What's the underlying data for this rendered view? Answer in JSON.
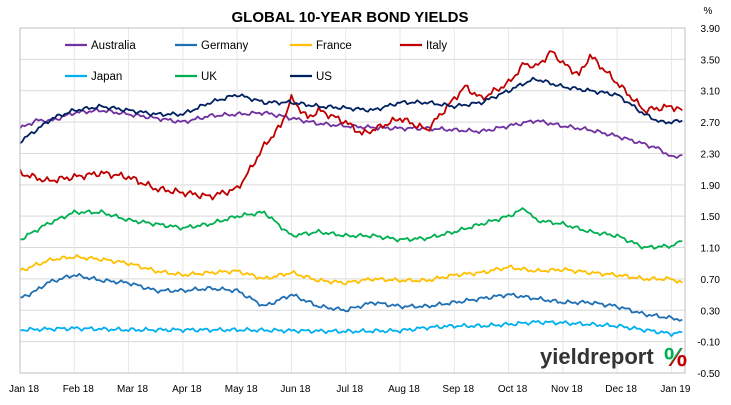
{
  "chart_data": {
    "type": "line",
    "title": "GLOBAL 10-YEAR BOND YIELDS",
    "y_unit": "%",
    "ylim": [
      -0.5,
      3.9
    ],
    "y_ticks": [
      "3.90",
      "3.50",
      "3.10",
      "2.70",
      "2.30",
      "1.90",
      "1.50",
      "1.10",
      "0.70",
      "0.30",
      "-0.10",
      "-0.50"
    ],
    "x_ticks": [
      "Jan 18",
      "Feb 18",
      "Mar 18",
      "Apr 18",
      "May 18",
      "Jun 18",
      "Jul 18",
      "Aug 18",
      "Sep 18",
      "Oct 18",
      "Nov 18",
      "Dec 18",
      "Jan 19"
    ],
    "grid": true,
    "legend_position": "top-left",
    "series": [
      {
        "name": "Australia",
        "color": "#7030a0",
        "x": [
          0,
          0.3,
          0.6,
          1,
          1.5,
          2,
          2.5,
          3,
          3.5,
          4,
          4.5,
          5,
          5.5,
          6,
          6.5,
          7,
          7.5,
          8,
          8.5,
          9,
          9.5,
          10,
          10.5,
          11,
          11.5,
          11.8,
          12,
          12.2
        ],
        "values": [
          2.62,
          2.72,
          2.72,
          2.82,
          2.85,
          2.8,
          2.75,
          2.7,
          2.78,
          2.8,
          2.82,
          2.75,
          2.68,
          2.65,
          2.63,
          2.62,
          2.62,
          2.6,
          2.58,
          2.65,
          2.72,
          2.65,
          2.6,
          2.52,
          2.42,
          2.35,
          2.25,
          2.28
        ]
      },
      {
        "name": "Germany",
        "color": "#1f6fb5",
        "x": [
          0,
          0.3,
          0.5,
          1,
          1.5,
          2,
          2.5,
          3,
          3.5,
          4,
          4.5,
          5,
          5.5,
          6,
          6.5,
          7,
          7.5,
          8,
          8.5,
          9,
          9.5,
          10,
          10.5,
          11,
          11.5,
          12,
          12.2
        ],
        "values": [
          0.45,
          0.55,
          0.65,
          0.75,
          0.68,
          0.65,
          0.55,
          0.55,
          0.58,
          0.55,
          0.35,
          0.5,
          0.35,
          0.3,
          0.4,
          0.35,
          0.35,
          0.4,
          0.45,
          0.5,
          0.45,
          0.4,
          0.4,
          0.35,
          0.25,
          0.2,
          0.18
        ]
      },
      {
        "name": "France",
        "color": "#ffc000",
        "x": [
          0,
          0.3,
          0.6,
          1,
          1.5,
          2,
          2.5,
          3,
          3.5,
          4,
          4.5,
          5,
          5.5,
          6,
          6.5,
          7,
          7.5,
          8,
          8.5,
          9,
          9.5,
          10,
          10.5,
          11,
          11.5,
          12,
          12.2
        ],
        "values": [
          0.8,
          0.88,
          0.95,
          0.98,
          0.95,
          0.9,
          0.8,
          0.75,
          0.78,
          0.8,
          0.7,
          0.78,
          0.68,
          0.65,
          0.7,
          0.68,
          0.68,
          0.75,
          0.78,
          0.85,
          0.8,
          0.82,
          0.78,
          0.75,
          0.7,
          0.7,
          0.65
        ]
      },
      {
        "name": "Italy",
        "color": "#c00000",
        "x": [
          0,
          0.5,
          1,
          1.5,
          2,
          2.5,
          3,
          3.5,
          4,
          4.2,
          4.5,
          4.8,
          5,
          5.3,
          5.5,
          6,
          6.3,
          6.5,
          7,
          7.5,
          8,
          8.2,
          8.5,
          9,
          9.3,
          9.5,
          9.8,
          10,
          10.3,
          10.5,
          11,
          11.5,
          12,
          12.2
        ],
        "values": [
          2.05,
          1.95,
          2.0,
          2.05,
          2.0,
          1.85,
          1.8,
          1.75,
          1.85,
          2.05,
          2.4,
          2.65,
          3.0,
          2.75,
          2.85,
          2.7,
          2.55,
          2.6,
          2.75,
          2.6,
          3.0,
          3.15,
          3.0,
          3.2,
          3.45,
          3.4,
          3.6,
          3.45,
          3.3,
          3.55,
          3.2,
          2.85,
          2.9,
          2.85
        ]
      },
      {
        "name": "Japan",
        "color": "#00b0f0",
        "x": [
          0,
          1,
          2,
          3,
          4,
          5,
          6,
          7,
          7.5,
          8,
          8.5,
          9,
          9.5,
          10,
          10.5,
          11,
          11.5,
          12,
          12.2
        ],
        "values": [
          0.05,
          0.07,
          0.05,
          0.05,
          0.05,
          0.04,
          0.03,
          0.04,
          0.08,
          0.1,
          0.1,
          0.12,
          0.15,
          0.14,
          0.12,
          0.1,
          0.05,
          0.0,
          0.02
        ]
      },
      {
        "name": "UK",
        "color": "#00b050",
        "x": [
          0,
          0.5,
          1,
          1.5,
          2,
          2.5,
          3,
          3.5,
          4,
          4.5,
          5,
          5.5,
          6,
          6.5,
          7,
          7.5,
          8,
          8.5,
          9,
          9.3,
          9.5,
          10,
          10.5,
          11,
          11.5,
          12,
          12.2
        ],
        "values": [
          1.2,
          1.4,
          1.55,
          1.55,
          1.45,
          1.4,
          1.35,
          1.4,
          1.5,
          1.55,
          1.25,
          1.3,
          1.25,
          1.25,
          1.2,
          1.22,
          1.3,
          1.4,
          1.5,
          1.6,
          1.45,
          1.4,
          1.3,
          1.25,
          1.1,
          1.12,
          1.18
        ]
      },
      {
        "name": "US",
        "color": "#002060",
        "x": [
          0,
          0.3,
          0.6,
          1,
          1.5,
          2,
          2.5,
          3,
          3.5,
          4,
          4.5,
          5,
          5.5,
          6,
          6.5,
          7,
          7.5,
          8,
          8.5,
          9,
          9.3,
          9.5,
          10,
          10.5,
          11,
          11.5,
          11.8,
          12,
          12.2
        ],
        "values": [
          2.45,
          2.6,
          2.75,
          2.85,
          2.9,
          2.85,
          2.8,
          2.8,
          2.95,
          3.05,
          2.95,
          2.95,
          2.9,
          2.88,
          2.85,
          2.95,
          2.95,
          2.9,
          2.95,
          3.1,
          3.2,
          3.25,
          3.15,
          3.1,
          3.05,
          2.8,
          2.7,
          2.7,
          2.72
        ]
      }
    ],
    "brand": {
      "word": "yieldreport",
      "symbol": "%",
      "word_color": "#333333",
      "symbol_colors": [
        "#00b050",
        "#c00000"
      ]
    }
  }
}
